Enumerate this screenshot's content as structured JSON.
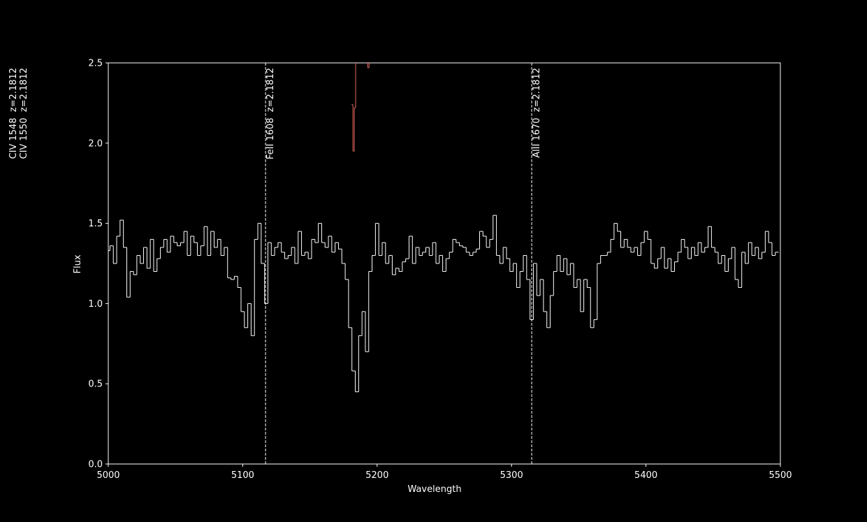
{
  "chart_data": {
    "type": "step",
    "xlabel": "Wavelength",
    "ylabel": "Flux",
    "xlim": [
      5000,
      5500
    ],
    "ylim": [
      0,
      2.5
    ],
    "xticks": [
      5000,
      5100,
      5200,
      5300,
      5400,
      5500
    ],
    "yticks": [
      {
        "value": 0,
        "label": "0.0"
      },
      0.5,
      {
        "value": 1,
        "label": "1.0"
      },
      1.5,
      {
        "value": 2,
        "label": "2.0"
      },
      2.5
    ],
    "series": [
      {
        "name": "flux",
        "color": "#ffffff",
        "x": [
          5000,
          5002.5,
          5005,
          5007.5,
          5010,
          5012.5,
          5015,
          5017.5,
          5020,
          5022.5,
          5025,
          5027.5,
          5030,
          5032.5,
          5035,
          5037.5,
          5040,
          5042.5,
          5045,
          5047.5,
          5050,
          5052.5,
          5055,
          5057.5,
          5060,
          5062.5,
          5065,
          5067.5,
          5070,
          5072.5,
          5075,
          5077.5,
          5080,
          5082.5,
          5085,
          5087.5,
          5090,
          5092.5,
          5095,
          5097.5,
          5100,
          5102.5,
          5105,
          5107.5,
          5110,
          5112.5,
          5115,
          5117.5,
          5120,
          5122.5,
          5125,
          5127.5,
          5130,
          5132.5,
          5135,
          5137.5,
          5140,
          5142.5,
          5145,
          5147.5,
          5150,
          5152.5,
          5155,
          5157.5,
          5160,
          5162.5,
          5165,
          5167.5,
          5170,
          5172.5,
          5175,
          5177.5,
          5180,
          5182.5,
          5185,
          5187.5,
          5190,
          5192.5,
          5195,
          5197.5,
          5200,
          5202.5,
          5205,
          5207.5,
          5210,
          5212.5,
          5215,
          5217.5,
          5220,
          5222.5,
          5225,
          5227.5,
          5230,
          5232.5,
          5235,
          5237.5,
          5240,
          5242.5,
          5245,
          5247.5,
          5250,
          5252.5,
          5255,
          5257.5,
          5260,
          5262.5,
          5265,
          5267.5,
          5270,
          5272.5,
          5275,
          5277.5,
          5280,
          5282.5,
          5285,
          5287.5,
          5290,
          5292.5,
          5295,
          5297.5,
          5300,
          5302.5,
          5305,
          5307.5,
          5310,
          5312.5,
          5315,
          5317.5,
          5320,
          5322.5,
          5325,
          5327.5,
          5330,
          5332.5,
          5335,
          5337.5,
          5340,
          5342.5,
          5345,
          5347.5,
          5350,
          5352.5,
          5355,
          5357.5,
          5360,
          5362.5,
          5365,
          5367.5,
          5370,
          5372.5,
          5375,
          5377.5,
          5380,
          5382.5,
          5385,
          5387.5,
          5390,
          5392.5,
          5395,
          5397.5,
          5400,
          5402.5,
          5405,
          5407.5,
          5410,
          5412.5,
          5415,
          5417.5,
          5420,
          5422.5,
          5425,
          5427.5,
          5430,
          5432.5,
          5435,
          5437.5,
          5440,
          5442.5,
          5445,
          5447.5,
          5450,
          5452.5,
          5455,
          5457.5,
          5460,
          5462.5,
          5465,
          5467.5,
          5470,
          5472.5,
          5475,
          5477.5,
          5480,
          5482.5,
          5485,
          5487.5,
          5490,
          5492.5,
          5495,
          5497.5
        ],
        "values": [
          1.33,
          1.36,
          1.25,
          1.42,
          1.52,
          1.35,
          1.04,
          1.2,
          1.18,
          1.3,
          1.25,
          1.35,
          1.22,
          1.4,
          1.2,
          1.28,
          1.35,
          1.4,
          1.32,
          1.42,
          1.38,
          1.36,
          1.38,
          1.45,
          1.3,
          1.42,
          1.38,
          1.3,
          1.36,
          1.48,
          1.3,
          1.45,
          1.35,
          1.4,
          1.3,
          1.35,
          1.16,
          1.15,
          1.17,
          1.1,
          0.95,
          0.85,
          1.0,
          0.8,
          1.4,
          1.5,
          1.25,
          1.0,
          1.38,
          1.3,
          1.35,
          1.38,
          1.32,
          1.28,
          1.3,
          1.35,
          1.25,
          1.45,
          1.3,
          1.32,
          1.28,
          1.4,
          1.38,
          1.5,
          1.38,
          1.35,
          1.42,
          1.32,
          1.38,
          1.34,
          1.25,
          1.15,
          0.85,
          0.58,
          0.45,
          0.8,
          0.95,
          0.7,
          1.2,
          1.3,
          1.5,
          1.3,
          1.38,
          1.25,
          1.3,
          1.18,
          1.22,
          1.2,
          1.26,
          1.28,
          1.42,
          1.25,
          1.35,
          1.3,
          1.32,
          1.35,
          1.3,
          1.38,
          1.25,
          1.3,
          1.2,
          1.28,
          1.32,
          1.4,
          1.38,
          1.36,
          1.35,
          1.32,
          1.3,
          1.32,
          1.34,
          1.45,
          1.42,
          1.35,
          1.4,
          1.55,
          1.3,
          1.25,
          1.35,
          1.28,
          1.2,
          1.25,
          1.1,
          1.2,
          1.3,
          1.15,
          0.9,
          1.25,
          1.05,
          1.15,
          0.95,
          0.85,
          1.05,
          1.2,
          1.3,
          1.2,
          1.28,
          1.18,
          1.25,
          1.1,
          1.15,
          0.95,
          1.15,
          1.1,
          0.85,
          0.9,
          1.25,
          1.3,
          1.3,
          1.32,
          1.4,
          1.5,
          1.45,
          1.35,
          1.4,
          1.35,
          1.32,
          1.35,
          1.3,
          1.38,
          1.45,
          1.4,
          1.25,
          1.22,
          1.28,
          1.35,
          1.22,
          1.28,
          1.2,
          1.26,
          1.32,
          1.4,
          1.35,
          1.28,
          1.35,
          1.3,
          1.38,
          1.32,
          1.35,
          1.48,
          1.35,
          1.32,
          1.25,
          1.3,
          1.2,
          1.28,
          1.35,
          1.15,
          1.1,
          1.32,
          1.25,
          1.38,
          1.3,
          1.35,
          1.28,
          1.32,
          1.45,
          1.38,
          1.3,
          1.32
        ]
      },
      {
        "name": "model",
        "color": "#e8675a",
        "x": [
          5181.5,
          5182.5,
          5183.5,
          5184.5,
          5192.5,
          5193.5,
          5194.5
        ],
        "values": [
          2.24,
          1.95,
          2.22,
          2.6,
          2.6,
          2.47,
          2.6
        ]
      }
    ],
    "lines": [
      {
        "x": 5117,
        "label": "FeII 1608  z=2.1812"
      },
      {
        "x": 5315,
        "label": "AlII 1670  z=2.1812"
      }
    ],
    "side_labels": [
      "CIV 1548  z=2.1812",
      "CIV 1550  z=2.1812"
    ]
  }
}
